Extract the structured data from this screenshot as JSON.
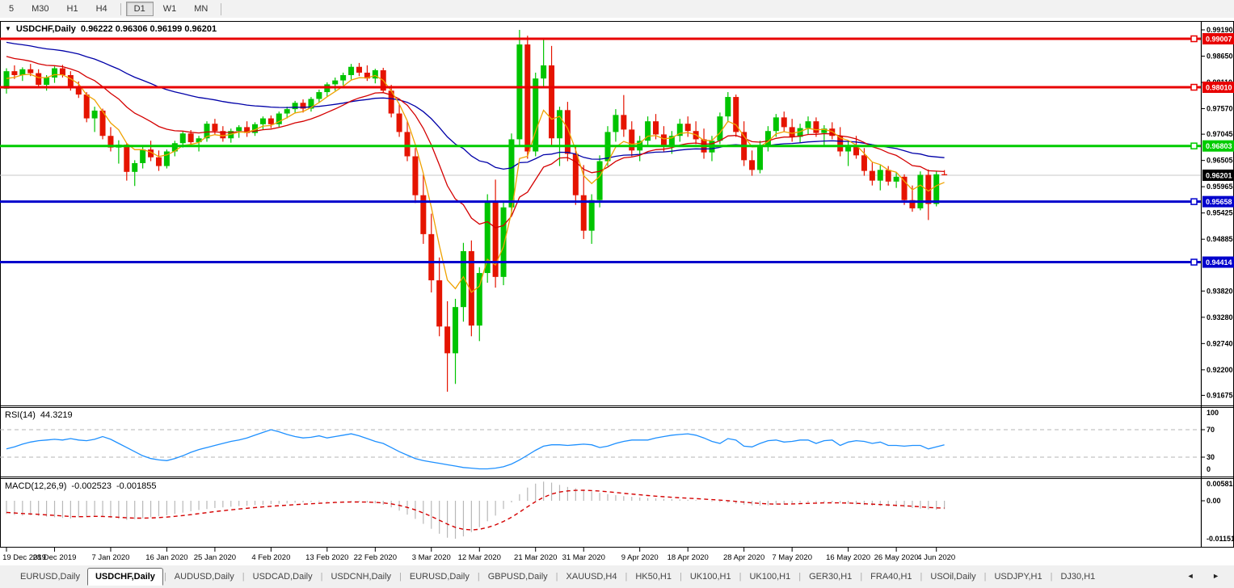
{
  "toolbar": {
    "timeframes": [
      "5",
      "M30",
      "H1",
      "H4",
      "|",
      "D1",
      "W1",
      "MN",
      "|"
    ],
    "active_timeframe": "D1"
  },
  "chart": {
    "collapse_icon": "▼",
    "symbol_label": "USDCHF,Daily",
    "quote_string": "0.96222 0.96306 0.96199 0.96201"
  },
  "indicators": {
    "rsi": {
      "name": "RSI(14)",
      "value": "44.3219"
    },
    "macd": {
      "name": "MACD(12,26,9)",
      "value": "-0.002523",
      "signal_value": "-0.001855"
    }
  },
  "tabs": {
    "items": [
      "EURUSD,Daily",
      "USDCHF,Daily",
      "AUDUSD,Daily",
      "USDCAD,Daily",
      "USDCNH,Daily",
      "EURUSD,Daily",
      "GBPUSD,Daily",
      "XAUUSD,H4",
      "HK50,H1",
      "UK100,H1",
      "UK100,H1",
      "GER30,H1",
      "FRA40,H1",
      "USOil,Daily",
      "USDJPY,H1",
      "DJ30,H1"
    ],
    "active": "USDCHF,Daily",
    "active_index": 1,
    "scroll_left_icon": "◄",
    "scroll_right_icon": "►"
  },
  "chart_data": {
    "type": "candlestick",
    "symbol": "USDCHF",
    "timeframe": "Daily",
    "current": {
      "open": 0.96222,
      "high": 0.96306,
      "low": 0.96199,
      "close": 0.96201
    },
    "price_axis_ticks": [
      0.9919,
      0.9865,
      0.9811,
      0.9757,
      0.97045,
      0.96505,
      0.95965,
      0.95425,
      0.94885,
      0.9382,
      0.9328,
      0.9274,
      0.922,
      0.91675
    ],
    "date_ticks": [
      {
        "bar": 0,
        "label": "19 Dec 2019"
      },
      {
        "bar": 6,
        "label": "28 Dec 2019"
      },
      {
        "bar": 13,
        "label": "7 Jan 2020"
      },
      {
        "bar": 20,
        "label": "16 Jan 2020"
      },
      {
        "bar": 26,
        "label": "25 Jan 2020"
      },
      {
        "bar": 33,
        "label": "4 Feb 2020"
      },
      {
        "bar": 40,
        "label": "13 Feb 2020"
      },
      {
        "bar": 46,
        "label": "22 Feb 2020"
      },
      {
        "bar": 53,
        "label": "3 Mar 2020"
      },
      {
        "bar": 59,
        "label": "12 Mar 2020"
      },
      {
        "bar": 66,
        "label": "21 Mar 2020"
      },
      {
        "bar": 72,
        "label": "31 Mar 2020"
      },
      {
        "bar": 79,
        "label": "9 Apr 2020"
      },
      {
        "bar": 85,
        "label": "18 Apr 2020"
      },
      {
        "bar": 92,
        "label": "28 Apr 2020"
      },
      {
        "bar": 98,
        "label": "7 May 2020"
      },
      {
        "bar": 105,
        "label": "16 May 2020"
      },
      {
        "bar": 111,
        "label": "26 May 2020"
      },
      {
        "bar": 116,
        "label": "4 Jun 2020"
      }
    ],
    "horizontal_lines": [
      {
        "price": 0.99007,
        "label": "0.99007",
        "color": "#e80000"
      },
      {
        "price": 0.9801,
        "label": "0.98010",
        "color": "#e80000"
      },
      {
        "price": 0.96803,
        "label": "0.96803",
        "color": "#00cc00"
      },
      {
        "price": 0.95658,
        "label": "0.95658",
        "color": "#0000cc"
      },
      {
        "price": 0.94414,
        "label": "0.94414",
        "color": "#0000cc"
      }
    ],
    "current_price_line": {
      "price": 0.96201,
      "label": "0.96201",
      "line_color": "#c8c8c8",
      "label_bg": "#000000"
    },
    "colors": {
      "up": "#00c400",
      "down": "#e51400",
      "ma_fast": "#efa200",
      "ma_mid": "#d40000",
      "ma_slow": "#0000a8",
      "rsi": "#1e90ff",
      "macd_hist": "#b8b8b8",
      "macd_signal": "#d40000"
    },
    "moving_averages": [
      {
        "name": "fast-ma",
        "color_key": "ma_fast"
      },
      {
        "name": "mid-ma",
        "color_key": "ma_mid"
      },
      {
        "name": "slow-ma",
        "color_key": "ma_slow"
      }
    ],
    "candles": [
      [
        0.9798,
        0.984,
        0.9788,
        0.9834
      ],
      [
        0.9834,
        0.9846,
        0.9818,
        0.9826
      ],
      [
        0.9826,
        0.9842,
        0.9814,
        0.9838
      ],
      [
        0.9838,
        0.9849,
        0.9824,
        0.983
      ],
      [
        0.983,
        0.9838,
        0.98,
        0.9806
      ],
      [
        0.9806,
        0.9826,
        0.9794,
        0.9821
      ],
      [
        0.9821,
        0.9844,
        0.981,
        0.984
      ],
      [
        0.984,
        0.9847,
        0.9821,
        0.9826
      ],
      [
        0.9826,
        0.9834,
        0.9794,
        0.9801
      ],
      [
        0.9801,
        0.9813,
        0.9779,
        0.9786
      ],
      [
        0.9786,
        0.9791,
        0.9729,
        0.9737
      ],
      [
        0.9737,
        0.9761,
        0.9709,
        0.9753
      ],
      [
        0.9753,
        0.9757,
        0.9694,
        0.9701
      ],
      [
        0.9701,
        0.9719,
        0.9669,
        0.9677
      ],
      [
        0.9677,
        0.9692,
        0.9644,
        0.9683
      ],
      [
        0.9683,
        0.9686,
        0.9609,
        0.9627
      ],
      [
        0.9627,
        0.9651,
        0.9598,
        0.9645
      ],
      [
        0.9645,
        0.9681,
        0.9634,
        0.9673
      ],
      [
        0.9673,
        0.9691,
        0.9649,
        0.9657
      ],
      [
        0.9657,
        0.9671,
        0.9629,
        0.9639
      ],
      [
        0.9639,
        0.9673,
        0.9634,
        0.9669
      ],
      [
        0.9669,
        0.9691,
        0.9659,
        0.9686
      ],
      [
        0.9686,
        0.9711,
        0.9677,
        0.9706
      ],
      [
        0.9706,
        0.9713,
        0.9679,
        0.9688
      ],
      [
        0.9688,
        0.9701,
        0.9669,
        0.9696
      ],
      [
        0.9696,
        0.9731,
        0.9689,
        0.9726
      ],
      [
        0.9726,
        0.9736,
        0.9704,
        0.9711
      ],
      [
        0.9711,
        0.9721,
        0.9689,
        0.9696
      ],
      [
        0.9696,
        0.9716,
        0.9687,
        0.9711
      ],
      [
        0.9711,
        0.9723,
        0.9697,
        0.9719
      ],
      [
        0.9719,
        0.9731,
        0.9699,
        0.9707
      ],
      [
        0.9707,
        0.9729,
        0.9701,
        0.9725
      ],
      [
        0.9725,
        0.9741,
        0.9714,
        0.9737
      ],
      [
        0.9737,
        0.9743,
        0.9717,
        0.9725
      ],
      [
        0.9725,
        0.9751,
        0.9719,
        0.9747
      ],
      [
        0.9747,
        0.9761,
        0.9737,
        0.9756
      ],
      [
        0.9756,
        0.9773,
        0.9747,
        0.9769
      ],
      [
        0.9769,
        0.9776,
        0.9749,
        0.9757
      ],
      [
        0.9757,
        0.9781,
        0.9751,
        0.9777
      ],
      [
        0.9777,
        0.9796,
        0.9769,
        0.9791
      ],
      [
        0.9791,
        0.9811,
        0.9781,
        0.9807
      ],
      [
        0.9807,
        0.9821,
        0.9794,
        0.9815
      ],
      [
        0.9815,
        0.9831,
        0.9805,
        0.9826
      ],
      [
        0.9826,
        0.9849,
        0.9817,
        0.9843
      ],
      [
        0.9843,
        0.9851,
        0.9824,
        0.9831
      ],
      [
        0.9831,
        0.9846,
        0.9814,
        0.9819
      ],
      [
        0.9819,
        0.9839,
        0.9809,
        0.9836
      ],
      [
        0.9836,
        0.9841,
        0.9789,
        0.9794
      ],
      [
        0.9794,
        0.9806,
        0.9739,
        0.9747
      ],
      [
        0.9747,
        0.9766,
        0.9699,
        0.9709
      ],
      [
        0.9709,
        0.9731,
        0.9649,
        0.9659
      ],
      [
        0.9659,
        0.9676,
        0.9563,
        0.9579
      ],
      [
        0.9579,
        0.9621,
        0.9479,
        0.9499
      ],
      [
        0.9499,
        0.9541,
        0.9379,
        0.9404
      ],
      [
        0.9404,
        0.9451,
        0.9289,
        0.9309
      ],
      [
        0.9309,
        0.9361,
        0.9175,
        0.9254
      ],
      [
        0.9254,
        0.9366,
        0.9191,
        0.9349
      ],
      [
        0.9349,
        0.9481,
        0.9319,
        0.9464
      ],
      [
        0.9464,
        0.9486,
        0.9289,
        0.9311
      ],
      [
        0.9311,
        0.9431,
        0.9279,
        0.9419
      ],
      [
        0.9419,
        0.9581,
        0.9399,
        0.9564
      ],
      [
        0.9564,
        0.9611,
        0.9389,
        0.9411
      ],
      [
        0.9411,
        0.9566,
        0.9394,
        0.9554
      ],
      [
        0.9554,
        0.9706,
        0.9539,
        0.9694
      ],
      [
        0.9694,
        0.9919,
        0.9679,
        0.9889
      ],
      [
        0.9889,
        0.9907,
        0.9654,
        0.9669
      ],
      [
        0.9669,
        0.9831,
        0.9659,
        0.9819
      ],
      [
        0.9819,
        0.9901,
        0.9799,
        0.9846
      ],
      [
        0.9846,
        0.9886,
        0.9679,
        0.9696
      ],
      [
        0.9696,
        0.9761,
        0.9639,
        0.9754
      ],
      [
        0.9754,
        0.9771,
        0.9649,
        0.9664
      ],
      [
        0.9664,
        0.9681,
        0.9559,
        0.9579
      ],
      [
        0.9579,
        0.9641,
        0.9489,
        0.9506
      ],
      [
        0.9506,
        0.9581,
        0.9479,
        0.9569
      ],
      [
        0.9569,
        0.9661,
        0.9554,
        0.9649
      ],
      [
        0.9649,
        0.9721,
        0.9639,
        0.9709
      ],
      [
        0.9709,
        0.9756,
        0.9689,
        0.9744
      ],
      [
        0.9744,
        0.9785,
        0.9699,
        0.9714
      ],
      [
        0.9714,
        0.9731,
        0.9659,
        0.9671
      ],
      [
        0.9671,
        0.9701,
        0.9649,
        0.9691
      ],
      [
        0.9691,
        0.9741,
        0.9679,
        0.9731
      ],
      [
        0.9731,
        0.9746,
        0.9694,
        0.9704
      ],
      [
        0.9704,
        0.9721,
        0.9669,
        0.9681
      ],
      [
        0.9681,
        0.9711,
        0.9664,
        0.9701
      ],
      [
        0.9701,
        0.9736,
        0.9689,
        0.9726
      ],
      [
        0.9726,
        0.9741,
        0.9699,
        0.9711
      ],
      [
        0.9711,
        0.9731,
        0.9684,
        0.9694
      ],
      [
        0.9694,
        0.9716,
        0.9654,
        0.9667
      ],
      [
        0.9667,
        0.9701,
        0.9649,
        0.9691
      ],
      [
        0.9691,
        0.9749,
        0.9684,
        0.9741
      ],
      [
        0.9741,
        0.9791,
        0.9729,
        0.9781
      ],
      [
        0.9781,
        0.9786,
        0.9699,
        0.9709
      ],
      [
        0.9709,
        0.9731,
        0.9639,
        0.9651
      ],
      [
        0.9651,
        0.9671,
        0.9619,
        0.9631
      ],
      [
        0.9631,
        0.9691,
        0.9624,
        0.9681
      ],
      [
        0.9681,
        0.9721,
        0.9669,
        0.9711
      ],
      [
        0.9711,
        0.9746,
        0.9699,
        0.9739
      ],
      [
        0.9739,
        0.9751,
        0.9709,
        0.9719
      ],
      [
        0.9719,
        0.9736,
        0.9689,
        0.9699
      ],
      [
        0.9699,
        0.9726,
        0.9687,
        0.9717
      ],
      [
        0.9717,
        0.9741,
        0.9704,
        0.9731
      ],
      [
        0.9731,
        0.9739,
        0.9699,
        0.9707
      ],
      [
        0.9707,
        0.9723,
        0.9679,
        0.9716
      ],
      [
        0.9716,
        0.9729,
        0.9694,
        0.9701
      ],
      [
        0.9701,
        0.9719,
        0.9659,
        0.9669
      ],
      [
        0.9669,
        0.9691,
        0.9639,
        0.9681
      ],
      [
        0.9681,
        0.9701,
        0.9654,
        0.9661
      ],
      [
        0.9661,
        0.9676,
        0.9619,
        0.9629
      ],
      [
        0.9629,
        0.9646,
        0.9599,
        0.9609
      ],
      [
        0.9609,
        0.9641,
        0.9589,
        0.9631
      ],
      [
        0.9631,
        0.9639,
        0.9599,
        0.9607
      ],
      [
        0.9607,
        0.9626,
        0.9594,
        0.9617
      ],
      [
        0.9617,
        0.9622,
        0.9559,
        0.9569
      ],
      [
        0.9569,
        0.9599,
        0.9545,
        0.9552
      ],
      [
        0.9552,
        0.9628,
        0.9548,
        0.9621
      ],
      [
        0.9621,
        0.9632,
        0.9528,
        0.9561
      ],
      [
        0.9561,
        0.9628,
        0.9556,
        0.9622
      ],
      [
        0.96222,
        0.96306,
        0.96199,
        0.96201
      ]
    ],
    "rsi": {
      "period": 14,
      "current": 44.3219,
      "levels": [
        70,
        30
      ],
      "axis_ticks": [
        100,
        70,
        30,
        0
      ],
      "values": [
        42,
        45,
        49,
        52,
        54,
        55,
        56,
        55,
        57,
        55,
        54,
        56,
        60,
        56,
        50,
        44,
        38,
        32,
        28,
        26,
        25,
        28,
        32,
        37,
        41,
        44,
        47,
        50,
        53,
        55,
        58,
        62,
        66,
        70,
        67,
        63,
        60,
        58,
        59,
        61,
        58,
        60,
        62,
        64,
        61,
        57,
        53,
        50,
        44,
        38,
        33,
        28,
        25,
        23,
        21,
        19,
        17,
        15,
        14,
        13,
        13,
        14,
        16,
        20,
        26,
        33,
        40,
        46,
        48,
        48,
        47,
        48,
        49,
        48,
        44,
        46,
        50,
        53,
        55,
        55,
        55,
        58,
        60,
        62,
        63,
        64,
        62,
        58,
        53,
        50,
        57,
        55,
        46,
        45,
        50,
        54,
        55,
        52,
        53,
        55,
        55,
        50,
        54,
        55,
        47,
        52,
        54,
        53,
        50,
        52,
        47,
        47,
        46,
        47,
        47,
        42,
        45,
        48
      ]
    },
    "macd": {
      "fast": 12,
      "slow": 26,
      "signal": 9,
      "current": -0.002523,
      "signal_current": -0.001855,
      "axis_ticks": [
        "0.005818",
        "0.00",
        "-0.011515"
      ],
      "values": [
        -0.004,
        -0.0043,
        -0.0045,
        -0.0044,
        -0.0046,
        -0.0048,
        -0.005,
        -0.0052,
        -0.0054,
        -0.005,
        -0.0047,
        -0.0045,
        -0.0048,
        -0.0052,
        -0.0055,
        -0.0058,
        -0.0056,
        -0.0053,
        -0.005,
        -0.0047,
        -0.0044,
        -0.004,
        -0.0036,
        -0.0032,
        -0.0028,
        -0.0025,
        -0.0022,
        -0.002,
        -0.0018,
        -0.0016,
        -0.0015,
        -0.0013,
        -0.0012,
        -0.001,
        -0.0009,
        -0.0008,
        -0.0006,
        -0.0005,
        -0.0004,
        -0.0003,
        -0.0002,
        -0.0001,
        -0.0001,
        -0.0002,
        -0.0003,
        -0.0005,
        -0.0008,
        -0.0012,
        -0.002,
        -0.003,
        -0.0042,
        -0.0055,
        -0.007,
        -0.0085,
        -0.01,
        -0.0112,
        -0.0115,
        -0.0108,
        -0.0095,
        -0.008,
        -0.0062,
        -0.0045,
        -0.0025,
        -0.0005,
        0.002,
        0.004,
        0.0052,
        0.0058,
        0.0055,
        0.0048,
        0.0042,
        0.0038,
        0.0032,
        0.0028,
        0.0024,
        0.002,
        0.0017,
        0.0014,
        0.0012,
        0.001,
        0.0008,
        0.0007,
        0.0006,
        0.0005,
        0.0004,
        0.0003,
        0.0002,
        0.0,
        -0.0002,
        -0.0004,
        -0.0006,
        -0.0009,
        -0.0012,
        -0.0014,
        -0.0015,
        -0.0014,
        -0.0012,
        -0.001,
        -0.0008,
        -0.0006,
        -0.0005,
        -0.0004,
        -0.0004,
        -0.0005,
        -0.0007,
        -0.0009,
        -0.0011,
        -0.0013,
        -0.0015,
        -0.0016,
        -0.0017,
        -0.0018,
        -0.002,
        -0.0022,
        -0.0024,
        -0.0026,
        -0.0027,
        -0.002523
      ]
    }
  }
}
